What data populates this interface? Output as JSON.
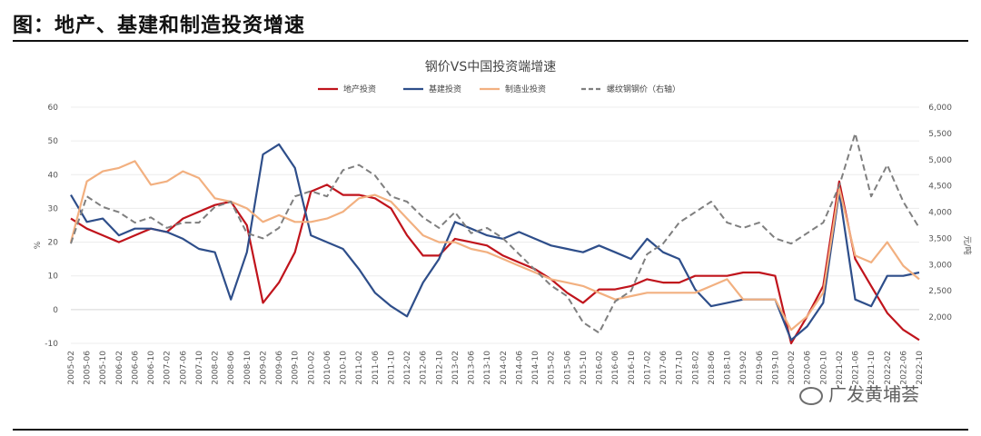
{
  "figure_title": "图：地产、基建和制造投资增速",
  "watermark": "广发黄埔荟",
  "chart_data": {
    "type": "line",
    "title": "钢价VS中国投资端增速",
    "ylabel_left": "%",
    "ylabel_right": "元/吨",
    "ylim_left": [
      -10,
      60
    ],
    "ylim_right": [
      1500,
      6000
    ],
    "yticks_left": [
      -10,
      0,
      10,
      20,
      30,
      40,
      50,
      60
    ],
    "yticks_right": [
      1500,
      2000,
      2500,
      3000,
      3500,
      4000,
      4500,
      5000,
      5500,
      6000
    ],
    "yticks_right_labels": [
      "",
      "2,000",
      "2,500",
      "3,000",
      "3,500",
      "4,000",
      "4,500",
      "5,000",
      "5,500",
      "6,000"
    ],
    "x_labels": [
      "2005-02",
      "2005-06",
      "2005-10",
      "2006-02",
      "2006-06",
      "2006-10",
      "2007-02",
      "2007-06",
      "2007-10",
      "2008-02",
      "2008-06",
      "2008-10",
      "2009-02",
      "2009-06",
      "2009-10",
      "2010-02",
      "2010-06",
      "2010-10",
      "2011-02",
      "2011-06",
      "2011-10",
      "2012-02",
      "2012-06",
      "2012-10",
      "2013-02",
      "2013-06",
      "2013-10",
      "2014-02",
      "2014-06",
      "2014-10",
      "2015-02",
      "2015-06",
      "2015-10",
      "2016-02",
      "2016-06",
      "2016-10",
      "2017-02",
      "2017-06",
      "2017-10",
      "2018-02",
      "2018-06",
      "2018-10",
      "2019-02",
      "2019-06",
      "2019-10",
      "2020-02",
      "2020-06",
      "2020-10",
      "2021-02",
      "2021-06",
      "2021-10",
      "2022-02",
      "2022-06",
      "2022-10"
    ],
    "legend_position": "top",
    "series": [
      {
        "name": "地产投资",
        "color": "#c0141c",
        "dash": false,
        "axis": "left",
        "values": [
          27,
          24,
          22,
          20,
          22,
          24,
          23,
          27,
          29,
          31,
          32,
          25,
          2,
          8,
          17,
          35,
          37,
          34,
          34,
          33,
          30,
          22,
          16,
          16,
          21,
          20,
          19,
          16,
          14,
          12,
          9,
          5,
          2,
          6,
          6,
          7,
          9,
          8,
          8,
          10,
          10,
          10,
          11,
          11,
          10,
          -10,
          -2,
          7,
          38,
          15,
          7,
          -1,
          -6,
          -9
        ]
      },
      {
        "name": "基建投资",
        "color": "#2e4e8a",
        "dash": false,
        "axis": "left",
        "values": [
          34,
          26,
          27,
          22,
          24,
          24,
          23,
          21,
          18,
          17,
          3,
          17,
          46,
          49,
          42,
          22,
          20,
          18,
          12,
          5,
          1,
          -2,
          8,
          15,
          26,
          24,
          22,
          21,
          23,
          21,
          19,
          18,
          17,
          19,
          17,
          15,
          21,
          17,
          15,
          6,
          1,
          2,
          3,
          3,
          3,
          -9,
          -5,
          2,
          35,
          3,
          1,
          10,
          10,
          11
        ]
      },
      {
        "name": "制造业投资",
        "color": "#f2b080",
        "dash": false,
        "axis": "left",
        "values": [
          20,
          38,
          41,
          42,
          44,
          37,
          38,
          41,
          39,
          33,
          32,
          30,
          26,
          28,
          26,
          26,
          27,
          29,
          33,
          34,
          32,
          27,
          22,
          20,
          20,
          18,
          17,
          15,
          13,
          11,
          9,
          8,
          7,
          5,
          3,
          4,
          5,
          5,
          5,
          5,
          7,
          9,
          3,
          3,
          3,
          -6,
          -2,
          5,
          36,
          16,
          14,
          20,
          13,
          9
        ]
      },
      {
        "name": "螺纹钢钢价（右轴）",
        "color": "#7f7f7f",
        "dash": true,
        "axis": "right",
        "values": [
          3400,
          4300,
          4100,
          4000,
          3800,
          3900,
          3700,
          3800,
          3800,
          4100,
          4200,
          3600,
          3500,
          3700,
          4300,
          4400,
          4300,
          4800,
          4900,
          4700,
          4300,
          4200,
          3900,
          3700,
          4000,
          3600,
          3700,
          3500,
          3200,
          2900,
          2600,
          2400,
          1900,
          1700,
          2300,
          2500,
          3200,
          3400,
          3800,
          4000,
          4200,
          3800,
          3700,
          3800,
          3500,
          3400,
          3600,
          3800,
          4500,
          5500,
          4300,
          4900,
          4200,
          3700
        ]
      }
    ]
  }
}
